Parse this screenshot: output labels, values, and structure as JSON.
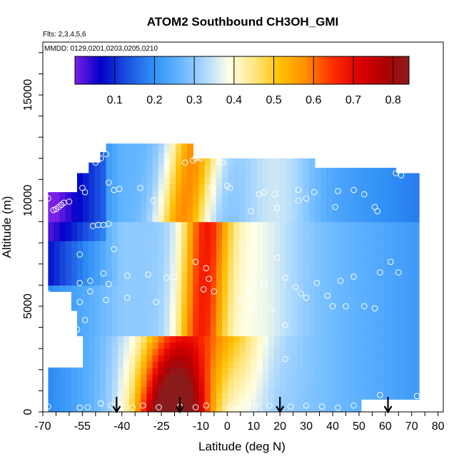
{
  "chart_data": {
    "type": "heatmap",
    "title": "ATOM2 Southbound CH3OH_GMI",
    "subtitle_flights": "Flts: 2,3,4,5,6",
    "subtitle_dates": "MMDD: 0129,0201,0203,0205,0210",
    "xlabel": "Latitude (deg N)",
    "ylabel": "Altitude (m)",
    "xlim": [
      -70,
      82
    ],
    "ylim": [
      0,
      17500
    ],
    "x_ticks": [
      -70,
      -55,
      -40,
      -25,
      -10,
      0,
      10,
      20,
      30,
      40,
      50,
      60,
      70,
      80
    ],
    "y_ticks": [
      0,
      5000,
      10000,
      15000
    ],
    "colorbar": {
      "min": 0.0,
      "max": 0.84,
      "tick_values": [
        0.1,
        0.2,
        0.3,
        0.4,
        0.5,
        0.6,
        0.7,
        0.8
      ],
      "tick_labels": [
        "0.1",
        "0.2",
        "0.3",
        "0.4",
        "0.5",
        "0.6",
        "0.7",
        "0.8"
      ],
      "colors": [
        "#7a1fe6",
        "#0000c8",
        "#1a4fe0",
        "#2e8ef5",
        "#5fb3ff",
        "#a8d6ff",
        "#ffffe6",
        "#ffe680",
        "#ffc000",
        "#ff8c00",
        "#ff3000",
        "#e00000",
        "#b00000",
        "#8b1c1c"
      ]
    },
    "arrows_latitude": [
      -42,
      -18,
      20,
      61
    ],
    "grid": false,
    "sample_points": [
      [
        -68,
        10100
      ],
      [
        -66,
        9550
      ],
      [
        -65,
        9600
      ],
      [
        -64,
        9700
      ],
      [
        -63,
        9800
      ],
      [
        -62,
        9900
      ],
      [
        -60,
        9950
      ],
      [
        -55,
        10600
      ],
      [
        -54,
        10400
      ],
      [
        -50,
        11800
      ],
      [
        -48,
        12000
      ],
      [
        -46,
        12200
      ],
      [
        -45,
        10850
      ],
      [
        -43,
        10500
      ],
      [
        -41,
        10550
      ],
      [
        -33,
        10600
      ],
      [
        -28,
        10000
      ],
      [
        -51,
        8800
      ],
      [
        -49,
        8850
      ],
      [
        -47,
        8850
      ],
      [
        -45,
        8900
      ],
      [
        -43,
        7700
      ],
      [
        -56,
        7450
      ],
      [
        -56,
        6100
      ],
      [
        -52,
        6200
      ],
      [
        -47,
        6550
      ],
      [
        -45,
        6050
      ],
      [
        -38,
        6450
      ],
      [
        -30,
        6500
      ],
      [
        -23,
        6350
      ],
      [
        -20,
        6400
      ],
      [
        -68,
        5600
      ],
      [
        -67,
        5200
      ],
      [
        -56,
        5200
      ],
      [
        -52,
        5700
      ],
      [
        -46,
        5300
      ],
      [
        -38,
        5400
      ],
      [
        -27,
        5200
      ],
      [
        -57,
        3900
      ],
      [
        -54,
        4350
      ],
      [
        -68,
        250
      ],
      [
        -56,
        200
      ],
      [
        -53,
        220
      ],
      [
        -48,
        400
      ],
      [
        -44,
        300
      ],
      [
        -40,
        250
      ],
      [
        -36,
        200
      ],
      [
        -32,
        300
      ],
      [
        -26,
        220
      ],
      [
        -18,
        250
      ],
      [
        -12,
        220
      ],
      [
        -8,
        300
      ],
      [
        1,
        220
      ],
      [
        8,
        300
      ],
      [
        16,
        300
      ],
      [
        -13,
        11900
      ],
      [
        -12,
        12000
      ],
      [
        -11,
        12050
      ],
      [
        -10,
        12000
      ],
      [
        -16,
        11800
      ],
      [
        -2,
        11800
      ],
      [
        -6,
        10600
      ],
      [
        0,
        10700
      ],
      [
        1,
        10600
      ],
      [
        12,
        10300
      ],
      [
        14,
        10400
      ],
      [
        18,
        10300
      ],
      [
        19,
        9650
      ],
      [
        27,
        10500
      ],
      [
        33,
        10400
      ],
      [
        42,
        10450
      ],
      [
        48,
        10500
      ],
      [
        52,
        10300
      ],
      [
        27,
        10000
      ],
      [
        30,
        10100
      ],
      [
        41,
        9700
      ],
      [
        56,
        9700
      ],
      [
        57,
        9500
      ],
      [
        64,
        11300
      ],
      [
        66,
        11200
      ],
      [
        9,
        9500
      ],
      [
        -12,
        7100
      ],
      [
        -8,
        6800
      ],
      [
        -7,
        6300
      ],
      [
        -9,
        5800
      ],
      [
        -5,
        5700
      ],
      [
        8,
        5700
      ],
      [
        14,
        6100
      ],
      [
        22,
        6350
      ],
      [
        19,
        7300
      ],
      [
        5,
        5300
      ],
      [
        10,
        5000
      ],
      [
        17,
        4850
      ],
      [
        26,
        5900
      ],
      [
        28,
        5600
      ],
      [
        30,
        5400
      ],
      [
        34,
        6100
      ],
      [
        38,
        5500
      ],
      [
        40,
        5000
      ],
      [
        43,
        6200
      ],
      [
        45,
        5000
      ],
      [
        48,
        6400
      ],
      [
        52,
        5000
      ],
      [
        56,
        4900
      ],
      [
        58,
        6600
      ],
      [
        62,
        7100
      ],
      [
        65,
        6600
      ],
      [
        22,
        4100
      ],
      [
        22,
        2500
      ],
      [
        24,
        250
      ],
      [
        30,
        300
      ],
      [
        36,
        250
      ],
      [
        42,
        200
      ],
      [
        48,
        300
      ],
      [
        58,
        800
      ],
      [
        72,
        750
      ],
      [
        11,
        300
      ]
    ]
  }
}
